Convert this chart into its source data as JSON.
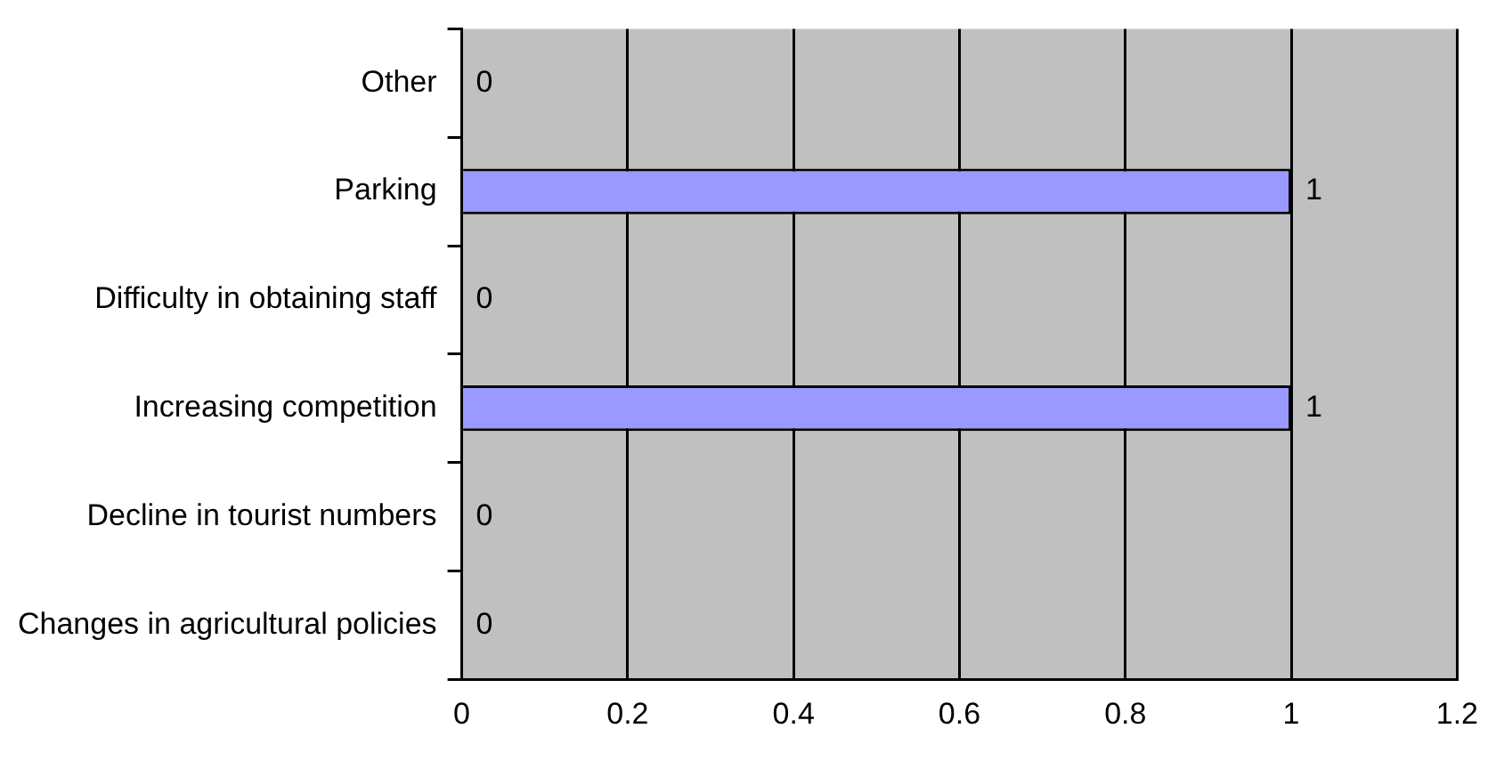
{
  "chart_data": {
    "type": "bar",
    "orientation": "horizontal",
    "categories": [
      "Other",
      "Parking",
      "Difficulty in obtaining staff",
      "Increasing competition",
      "Decline in tourist numbers",
      "Changes in agricultural policies"
    ],
    "values": [
      0,
      1,
      0,
      1,
      0,
      0
    ],
    "color": "#9999ff",
    "xlim": [
      0,
      1.2
    ],
    "xticks": [
      0,
      0.2,
      0.4,
      0.6,
      0.8,
      1,
      1.2
    ],
    "grid": "x",
    "legend": false,
    "data_labels": true
  }
}
